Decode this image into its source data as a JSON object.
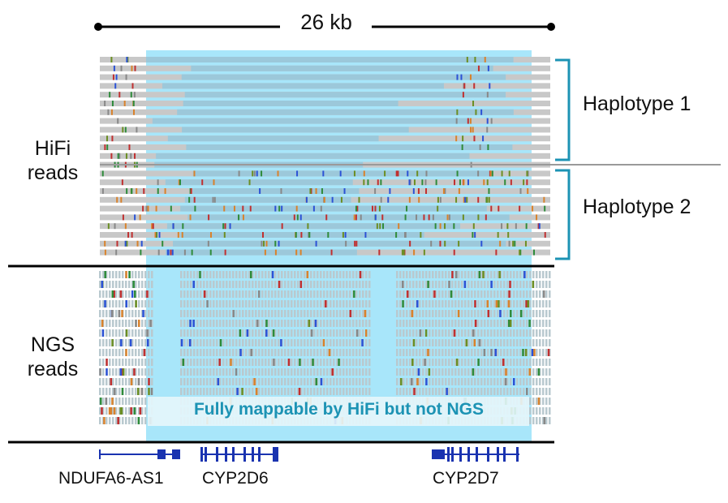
{
  "scale": {
    "label": "26 kb"
  },
  "labels": {
    "hifi": "HiFi\nreads",
    "ngs": "NGS\nreads",
    "haplotype1": "Haplotype 1",
    "haplotype2": "Haplotype 2",
    "annotation": "Fully mappable by HiFi but not NGS"
  },
  "genes": [
    {
      "name": "NDUFA6-AS1"
    },
    {
      "name": "CYP2D6"
    },
    {
      "name": "CYP2D7"
    }
  ],
  "colors": {
    "highlight": "#a8e6fa",
    "read_gray": "#c8c8c8",
    "read_blue": "#9cc8da",
    "bracket": "#1c93b4",
    "annotation_text": "#1c93b4",
    "gene": "#1a33b0",
    "variant_palette": [
      "#2e8b3a",
      "#d9822b",
      "#2b52d6",
      "#c03030",
      "#6b8e23",
      "#888888"
    ]
  }
}
